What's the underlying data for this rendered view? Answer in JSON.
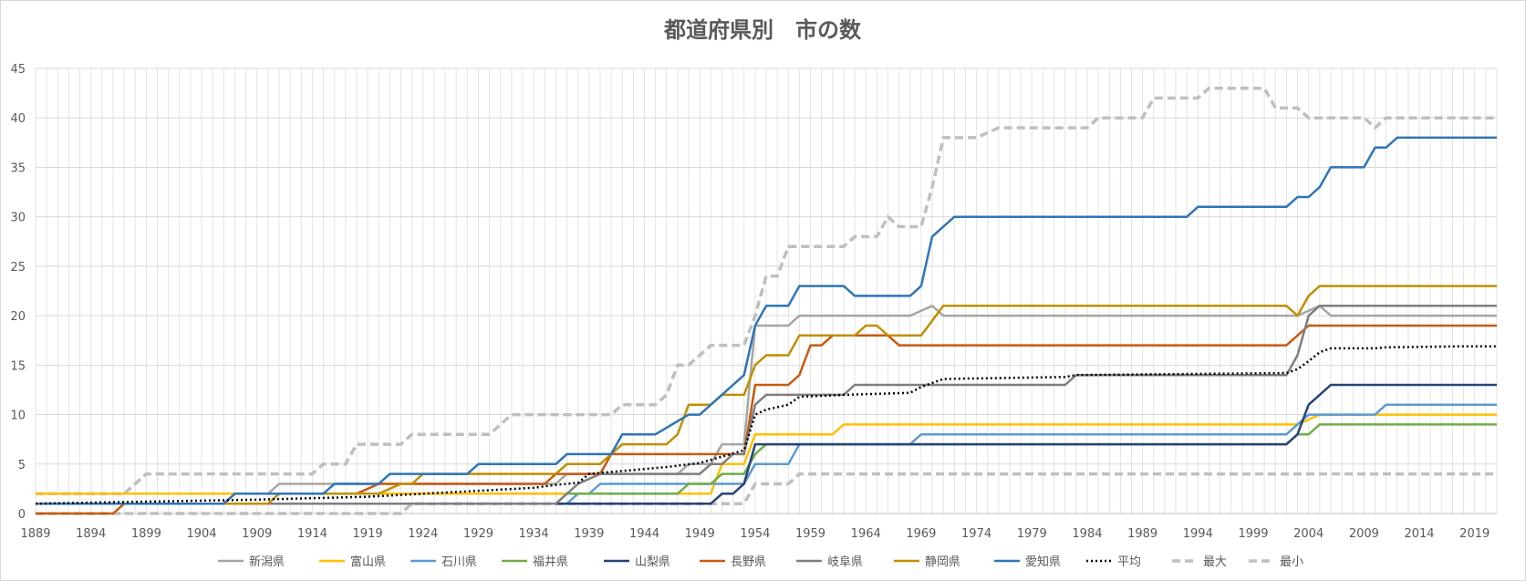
{
  "chart_data": {
    "type": "line",
    "title": "都道府県別　市の数",
    "xlabel": "",
    "ylabel": "",
    "ylim": [
      0,
      45
    ],
    "y_ticks": [
      "0",
      "5",
      "10",
      "15",
      "20",
      "25",
      "30",
      "35",
      "40",
      "45"
    ],
    "x_range": [
      1889,
      2021
    ],
    "x_tick_labels": [
      "1889",
      "1894",
      "1899",
      "1904",
      "1909",
      "1914",
      "1919",
      "1924",
      "1929",
      "1934",
      "1939",
      "1944",
      "1949",
      "1954",
      "1959",
      "1964",
      "1969",
      "1974",
      "1979",
      "1984",
      "1989",
      "1994",
      "1999",
      "2004",
      "2009",
      "2014",
      "2019"
    ],
    "grid": true,
    "legend_position": "bottom",
    "series": [
      {
        "name": "新潟県",
        "color": "#a5a5a5",
        "style": "solid",
        "points": [
          [
            1889,
            2
          ],
          [
            1910,
            2
          ],
          [
            1911,
            3
          ],
          [
            1917,
            3
          ],
          [
            1918,
            3
          ],
          [
            1936,
            3
          ],
          [
            1937,
            4
          ],
          [
            1947,
            4
          ],
          [
            1948,
            5
          ],
          [
            1950,
            5
          ],
          [
            1951,
            7
          ],
          [
            1953,
            7
          ],
          [
            1954,
            19
          ],
          [
            1957,
            19
          ],
          [
            1958,
            20
          ],
          [
            1968,
            20
          ],
          [
            1970,
            21
          ],
          [
            1971,
            20
          ],
          [
            2003,
            20
          ],
          [
            2005,
            21
          ],
          [
            2006,
            20
          ],
          [
            2021,
            20
          ]
        ]
      },
      {
        "name": "富山県",
        "color": "#ffc000",
        "style": "solid",
        "points": [
          [
            1889,
            2
          ],
          [
            1910,
            2
          ],
          [
            1911,
            2
          ],
          [
            1948,
            2
          ],
          [
            1950,
            2
          ],
          [
            1951,
            5
          ],
          [
            1952,
            5
          ],
          [
            1953,
            5
          ],
          [
            1954,
            8
          ],
          [
            1961,
            8
          ],
          [
            1962,
            9
          ],
          [
            2003,
            9
          ],
          [
            2005,
            10
          ],
          [
            2021,
            10
          ]
        ]
      },
      {
        "name": "石川県",
        "color": "#5b9bd5",
        "style": "solid",
        "points": [
          [
            1889,
            1
          ],
          [
            1936,
            1
          ],
          [
            1937,
            1
          ],
          [
            1938,
            2
          ],
          [
            1939,
            2
          ],
          [
            1940,
            3
          ],
          [
            1950,
            3
          ],
          [
            1953,
            3
          ],
          [
            1954,
            5
          ],
          [
            1957,
            5
          ],
          [
            1958,
            7
          ],
          [
            1968,
            7
          ],
          [
            1969,
            8
          ],
          [
            2002,
            8
          ],
          [
            2004,
            10
          ],
          [
            2010,
            10
          ],
          [
            2011,
            11
          ],
          [
            2021,
            11
          ]
        ]
      },
      {
        "name": "福井県",
        "color": "#70ad47",
        "style": "solid",
        "points": [
          [
            1889,
            1
          ],
          [
            1936,
            1
          ],
          [
            1937,
            2
          ],
          [
            1947,
            2
          ],
          [
            1948,
            3
          ],
          [
            1950,
            3
          ],
          [
            1951,
            4
          ],
          [
            1953,
            4
          ],
          [
            1954,
            6
          ],
          [
            1955,
            7
          ],
          [
            2002,
            7
          ],
          [
            2003,
            8
          ],
          [
            2004,
            8
          ],
          [
            2005,
            9
          ],
          [
            2021,
            9
          ]
        ]
      },
      {
        "name": "山梨県",
        "color": "#264478",
        "style": "solid",
        "points": [
          [
            1889,
            1
          ],
          [
            1950,
            1
          ],
          [
            1951,
            2
          ],
          [
            1952,
            2
          ],
          [
            1953,
            3
          ],
          [
            1954,
            7
          ],
          [
            2002,
            7
          ],
          [
            2003,
            8
          ],
          [
            2004,
            11
          ],
          [
            2005,
            12
          ],
          [
            2006,
            13
          ],
          [
            2021,
            13
          ]
        ]
      },
      {
        "name": "長野県",
        "color": "#c55a11",
        "style": "solid",
        "points": [
          [
            1889,
            0
          ],
          [
            1896,
            0
          ],
          [
            1897,
            1
          ],
          [
            1906,
            1
          ],
          [
            1907,
            2
          ],
          [
            1911,
            2
          ],
          [
            1912,
            2
          ],
          [
            1918,
            2
          ],
          [
            1920,
            3
          ],
          [
            1935,
            3
          ],
          [
            1936,
            4
          ],
          [
            1940,
            4
          ],
          [
            1941,
            6
          ],
          [
            1953,
            6
          ],
          [
            1954,
            13
          ],
          [
            1957,
            13
          ],
          [
            1958,
            14
          ],
          [
            1959,
            17
          ],
          [
            1960,
            17
          ],
          [
            1961,
            18
          ],
          [
            1966,
            18
          ],
          [
            1967,
            17
          ],
          [
            2002,
            17
          ],
          [
            2004,
            19
          ],
          [
            2021,
            19
          ]
        ]
      },
      {
        "name": "岐阜県",
        "color": "#7f7f7f",
        "style": "solid",
        "points": [
          [
            1889,
            1
          ],
          [
            1936,
            1
          ],
          [
            1937,
            2
          ],
          [
            1938,
            3
          ],
          [
            1940,
            4
          ],
          [
            1949,
            4
          ],
          [
            1950,
            5
          ],
          [
            1951,
            5
          ],
          [
            1952,
            6
          ],
          [
            1953,
            6
          ],
          [
            1954,
            11
          ],
          [
            1955,
            12
          ],
          [
            1962,
            12
          ],
          [
            1963,
            13
          ],
          [
            1982,
            13
          ],
          [
            1983,
            14
          ],
          [
            2002,
            14
          ],
          [
            2003,
            16
          ],
          [
            2004,
            20
          ],
          [
            2005,
            21
          ],
          [
            2021,
            21
          ]
        ]
      },
      {
        "name": "静岡県",
        "color": "#bf9000",
        "style": "solid",
        "points": [
          [
            1889,
            1
          ],
          [
            1910,
            1
          ],
          [
            1911,
            2
          ],
          [
            1920,
            2
          ],
          [
            1922,
            3
          ],
          [
            1923,
            3
          ],
          [
            1924,
            4
          ],
          [
            1935,
            4
          ],
          [
            1936,
            4
          ],
          [
            1937,
            5
          ],
          [
            1940,
            5
          ],
          [
            1942,
            7
          ],
          [
            1946,
            7
          ],
          [
            1947,
            8
          ],
          [
            1948,
            11
          ],
          [
            1950,
            11
          ],
          [
            1951,
            12
          ],
          [
            1953,
            12
          ],
          [
            1954,
            15
          ],
          [
            1955,
            16
          ],
          [
            1957,
            16
          ],
          [
            1958,
            18
          ],
          [
            1962,
            18
          ],
          [
            1963,
            18
          ],
          [
            1964,
            19
          ],
          [
            1965,
            19
          ],
          [
            1966,
            18
          ],
          [
            1969,
            18
          ],
          [
            1971,
            21
          ],
          [
            2002,
            21
          ],
          [
            2003,
            20
          ],
          [
            2004,
            22
          ],
          [
            2005,
            23
          ],
          [
            2021,
            23
          ]
        ]
      },
      {
        "name": "愛知県",
        "color": "#2e75b6",
        "style": "solid",
        "points": [
          [
            1889,
            1
          ],
          [
            1906,
            1
          ],
          [
            1907,
            2
          ],
          [
            1911,
            2
          ],
          [
            1912,
            2
          ],
          [
            1915,
            2
          ],
          [
            1916,
            3
          ],
          [
            1920,
            3
          ],
          [
            1921,
            4
          ],
          [
            1928,
            4
          ],
          [
            1929,
            5
          ],
          [
            1936,
            5
          ],
          [
            1937,
            6
          ],
          [
            1941,
            6
          ],
          [
            1942,
            8
          ],
          [
            1945,
            8
          ],
          [
            1948,
            10
          ],
          [
            1949,
            10
          ],
          [
            1953,
            14
          ],
          [
            1954,
            19
          ],
          [
            1955,
            21
          ],
          [
            1957,
            21
          ],
          [
            1958,
            23
          ],
          [
            1962,
            23
          ],
          [
            1963,
            22
          ],
          [
            1968,
            22
          ],
          [
            1969,
            23
          ],
          [
            1970,
            28
          ],
          [
            1972,
            30
          ],
          [
            1993,
            30
          ],
          [
            1994,
            31
          ],
          [
            2002,
            31
          ],
          [
            2003,
            32
          ],
          [
            2004,
            32
          ],
          [
            2005,
            33
          ],
          [
            2006,
            35
          ],
          [
            2009,
            35
          ],
          [
            2010,
            37
          ],
          [
            2011,
            37
          ],
          [
            2012,
            38
          ],
          [
            2021,
            38
          ]
        ]
      },
      {
        "name": "平均",
        "color": "#000000",
        "style": "dotted",
        "points": [
          [
            1889,
            1
          ],
          [
            1899,
            1.2
          ],
          [
            1909,
            1.4
          ],
          [
            1919,
            1.7
          ],
          [
            1924,
            2.0
          ],
          [
            1929,
            2.3
          ],
          [
            1934,
            2.6
          ],
          [
            1936,
            2.9
          ],
          [
            1938,
            3.1
          ],
          [
            1939,
            4.0
          ],
          [
            1944,
            4.5
          ],
          [
            1946,
            4.7
          ],
          [
            1949,
            5.1
          ],
          [
            1953,
            6.4
          ],
          [
            1954,
            10.0
          ],
          [
            1955,
            10.5
          ],
          [
            1957,
            11.0
          ],
          [
            1958,
            11.8
          ],
          [
            1962,
            12.0
          ],
          [
            1968,
            12.2
          ],
          [
            1969,
            12.8
          ],
          [
            1970,
            13.2
          ],
          [
            1971,
            13.6
          ],
          [
            1982,
            13.8
          ],
          [
            1983,
            14.0
          ],
          [
            2002,
            14.2
          ],
          [
            2003,
            14.6
          ],
          [
            2004,
            15.4
          ],
          [
            2005,
            16.3
          ],
          [
            2006,
            16.7
          ],
          [
            2010,
            16.7
          ],
          [
            2011,
            16.8
          ],
          [
            2018,
            16.9
          ],
          [
            2021,
            16.9
          ]
        ]
      },
      {
        "name": "最大",
        "color": "#bfbfbf",
        "style": "dashed",
        "points": [
          [
            1889,
            2
          ],
          [
            1897,
            2
          ],
          [
            1899,
            4
          ],
          [
            1914,
            4
          ],
          [
            1915,
            5
          ],
          [
            1917,
            5
          ],
          [
            1918,
            7
          ],
          [
            1922,
            7
          ],
          [
            1923,
            8
          ],
          [
            1930,
            8
          ],
          [
            1932,
            10
          ],
          [
            1941,
            10
          ],
          [
            1942,
            11
          ],
          [
            1945,
            11
          ],
          [
            1946,
            12
          ],
          [
            1947,
            15
          ],
          [
            1948,
            15
          ],
          [
            1950,
            17
          ],
          [
            1953,
            17
          ],
          [
            1954,
            20
          ],
          [
            1955,
            24
          ],
          [
            1956,
            24
          ],
          [
            1957,
            27
          ],
          [
            1962,
            27
          ],
          [
            1963,
            28
          ],
          [
            1965,
            28
          ],
          [
            1966,
            30
          ],
          [
            1967,
            29
          ],
          [
            1969,
            29
          ],
          [
            1970,
            33
          ],
          [
            1971,
            38
          ],
          [
            1974,
            38
          ],
          [
            1976,
            39
          ],
          [
            1984,
            39
          ],
          [
            1985,
            40
          ],
          [
            1989,
            40
          ],
          [
            1990,
            42
          ],
          [
            1994,
            42
          ],
          [
            1995,
            43
          ],
          [
            2000,
            43
          ],
          [
            2001,
            41
          ],
          [
            2003,
            41
          ],
          [
            2004,
            40
          ],
          [
            2009,
            40
          ],
          [
            2010,
            39
          ],
          [
            2011,
            40
          ],
          [
            2021,
            40
          ]
        ]
      },
      {
        "name": "最小",
        "color": "#bfbfbf",
        "style": "dashed",
        "points": [
          [
            1889,
            0
          ],
          [
            1922,
            0
          ],
          [
            1923,
            1
          ],
          [
            1952,
            1
          ],
          [
            1953,
            1
          ],
          [
            1954,
            3
          ],
          [
            1957,
            3
          ],
          [
            1958,
            4
          ],
          [
            2021,
            4
          ]
        ]
      }
    ]
  }
}
